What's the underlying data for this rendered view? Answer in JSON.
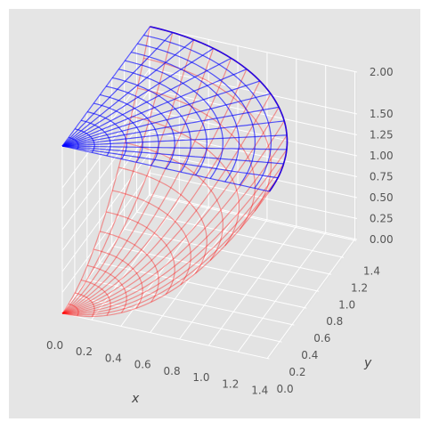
{
  "chart_data": {
    "type": "surface-3d",
    "style": "ggplot",
    "grid": true,
    "xlabel": "x",
    "ylabel": "y",
    "zlabel": "",
    "xlim": [
      0,
      1.4142
    ],
    "ylim": [
      0,
      1.4142
    ],
    "zlim": [
      0,
      2.0
    ],
    "xticks": [
      "0.0",
      "0.2",
      "0.4",
      "0.6",
      "0.8",
      "1.0",
      "1.2",
      "1.4"
    ],
    "yticks": [
      "0.0",
      "0.2",
      "0.4",
      "0.6",
      "0.8",
      "1.0",
      "1.2",
      "1.4"
    ],
    "zticks": [
      "0.00",
      "0.25",
      "0.50",
      "0.75",
      "1.00",
      "1.25",
      "1.50",
      "2.00"
    ],
    "zticks_values": [
      0,
      0.25,
      0.5,
      0.75,
      1.0,
      1.25,
      1.5,
      2.0
    ],
    "surfaces": [
      {
        "color": "#ff0000",
        "kind": "paraboloid",
        "equation": "z = x^2 + y^2",
        "domain": "quarter disk, r from 0 to 1.4142, theta from 0 to 90 deg",
        "radial_lines": 14,
        "circular_lines": 14
      },
      {
        "color": "#0000ff",
        "kind": "plane",
        "equation": "z = 2",
        "domain": "quarter disk, r from 0 to 1.4142, theta from 0 to 90 deg",
        "radial_lines": 14,
        "circular_lines": 14
      }
    ]
  }
}
